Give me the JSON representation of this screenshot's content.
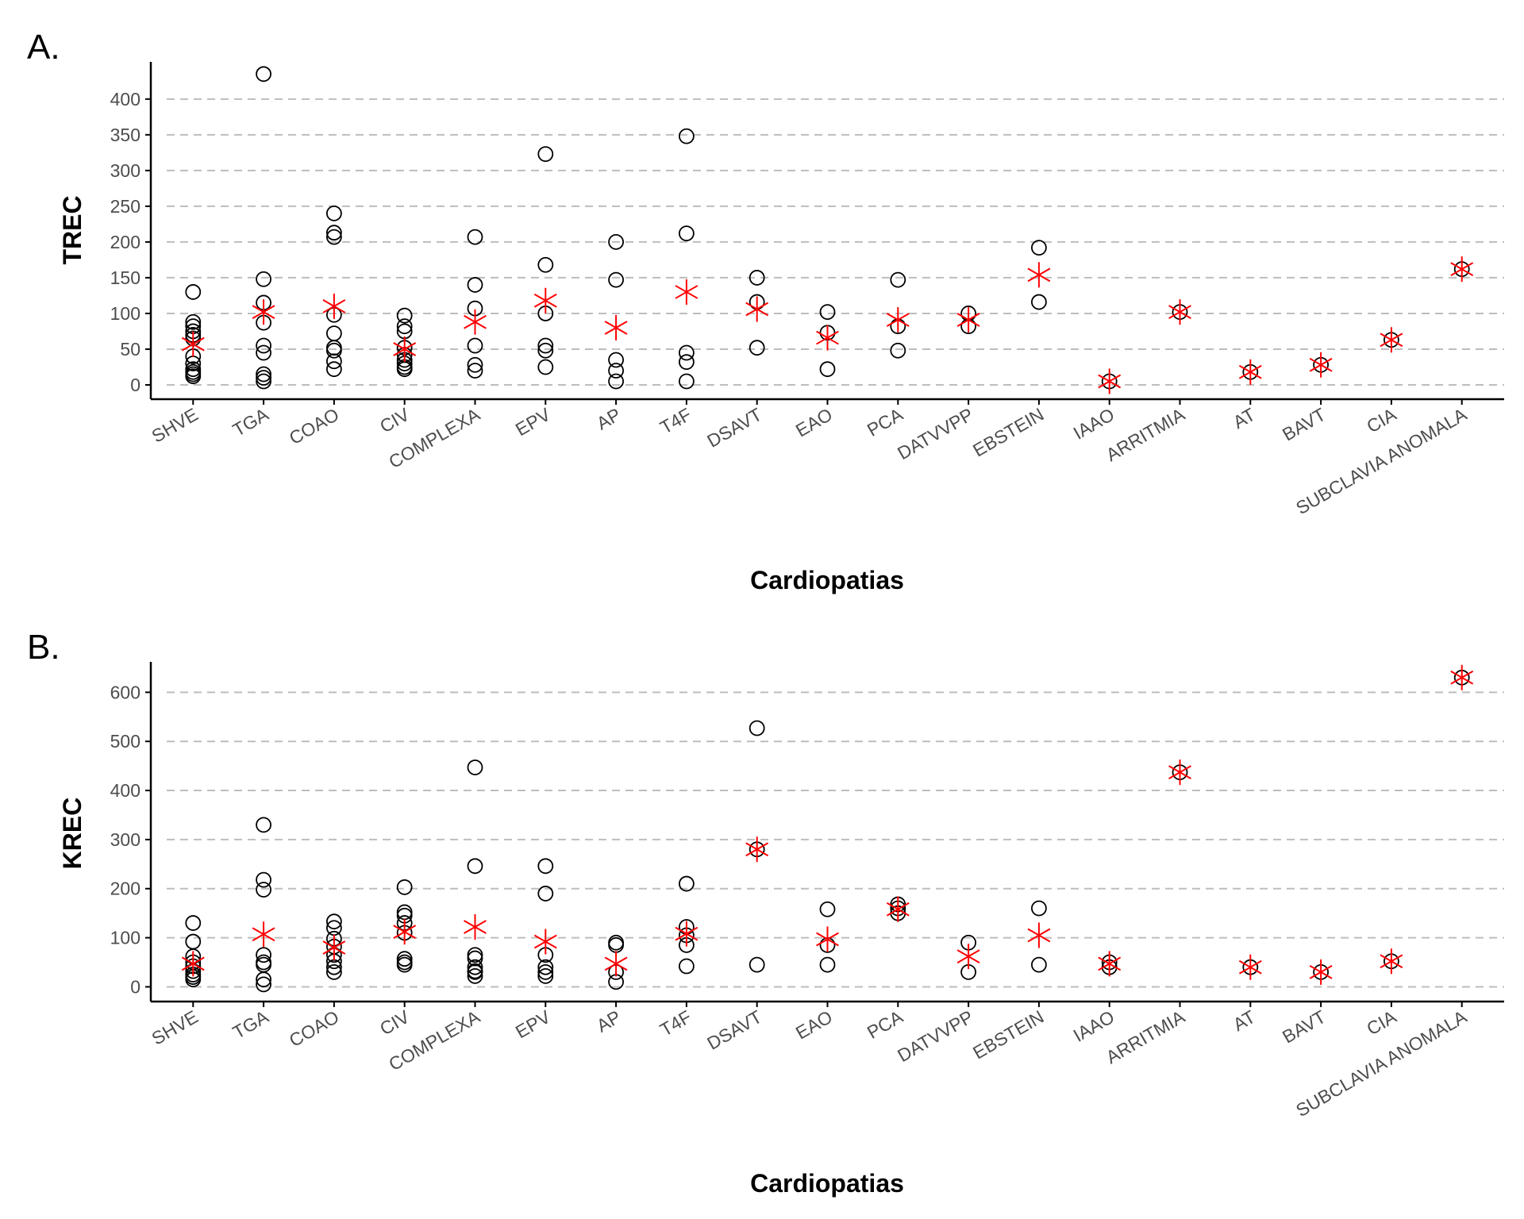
{
  "chart_data": [
    {
      "type": "scatter",
      "panel": "A.",
      "xlabel": "Cardiopatias",
      "ylabel": "TREC",
      "ylim": [
        -20,
        452
      ],
      "yticks": [
        0,
        50,
        100,
        150,
        200,
        250,
        300,
        350,
        400
      ],
      "grid": "horizontal dashed",
      "categories": [
        "SHVE",
        "TGA",
        "COAO",
        "CIV",
        "COMPLEXA",
        "EPV",
        "AP",
        "T4F",
        "DSAVT",
        "EAO",
        "PCA",
        "DATVVPP",
        "EBSTEIN",
        "IAAO",
        "ARRITMIA",
        "AT",
        "BAVT",
        "CIA",
        "SUBCLAVIA ANOMALA"
      ],
      "points": [
        [
          130,
          88,
          82,
          75,
          70,
          65,
          40,
          30,
          22,
          18,
          15,
          12
        ],
        [
          435,
          148,
          115,
          87,
          55,
          45,
          15,
          10,
          5
        ],
        [
          240,
          213,
          207,
          98,
          72,
          52,
          48,
          33,
          22
        ],
        [
          97,
          82,
          75,
          52,
          42,
          35,
          30,
          25,
          22
        ],
        [
          207,
          140,
          107,
          55,
          28,
          20
        ],
        [
          323,
          168,
          100,
          55,
          48,
          25
        ],
        [
          200,
          147,
          35,
          20,
          5
        ],
        [
          348,
          212,
          45,
          32,
          5
        ],
        [
          150,
          116,
          52
        ],
        [
          102,
          73,
          22
        ],
        [
          147,
          82,
          48
        ],
        [
          100,
          82
        ],
        [
          192,
          116
        ],
        [
          5
        ],
        [
          102
        ],
        [
          18
        ],
        [
          28
        ],
        [
          63
        ],
        [
          162
        ]
      ],
      "means": [
        57,
        102,
        110,
        50,
        88,
        118,
        80,
        130,
        106,
        66,
        91,
        91,
        154,
        5,
        102,
        18,
        28,
        63,
        162
      ],
      "colors": {
        "points": "#000000",
        "mean": "#ff0000",
        "grid": "#bdbdbd"
      }
    },
    {
      "type": "scatter",
      "panel": "B.",
      "xlabel": "Cardiopatias",
      "ylabel": "KREC",
      "ylim": [
        -30,
        662
      ],
      "yticks": [
        0,
        100,
        200,
        300,
        400,
        500,
        600
      ],
      "grid": "horizontal dashed",
      "categories": [
        "SHVE",
        "TGA",
        "COAO",
        "CIV",
        "COMPLEXA",
        "EPV",
        "AP",
        "T4F",
        "DSAVT",
        "EAO",
        "PCA",
        "DATVVPP",
        "EBSTEIN",
        "IAAO",
        "ARRITMIA",
        "AT",
        "BAVT",
        "CIA",
        "SUBCLAVIA ANOMALA"
      ],
      "points": [
        [
          130,
          92,
          62,
          50,
          42,
          32,
          25,
          20,
          15
        ],
        [
          330,
          218,
          198,
          65,
          50,
          45,
          15,
          5
        ],
        [
          133,
          120,
          98,
          82,
          65,
          52,
          40,
          30
        ],
        [
          203,
          152,
          145,
          130,
          110,
          57,
          50,
          45
        ],
        [
          447,
          246,
          65,
          58,
          40,
          32,
          30,
          22
        ],
        [
          246,
          190,
          65,
          40,
          30,
          22
        ],
        [
          90,
          85,
          30,
          10
        ],
        [
          210,
          122,
          105,
          85,
          42
        ],
        [
          527,
          280,
          45
        ],
        [
          158,
          85,
          45
        ],
        [
          168,
          160,
          150
        ],
        [
          90,
          30
        ],
        [
          160,
          45
        ],
        [
          50,
          40
        ],
        [
          437
        ],
        [
          40
        ],
        [
          30
        ],
        [
          52
        ],
        [
          630
        ]
      ],
      "means": [
        47,
        107,
        80,
        112,
        122,
        92,
        47,
        108,
        280,
        97,
        158,
        62,
        105,
        47,
        437,
        40,
        30,
        52,
        630
      ],
      "colors": {
        "points": "#000000",
        "mean": "#ff0000",
        "grid": "#bdbdbd"
      }
    }
  ]
}
